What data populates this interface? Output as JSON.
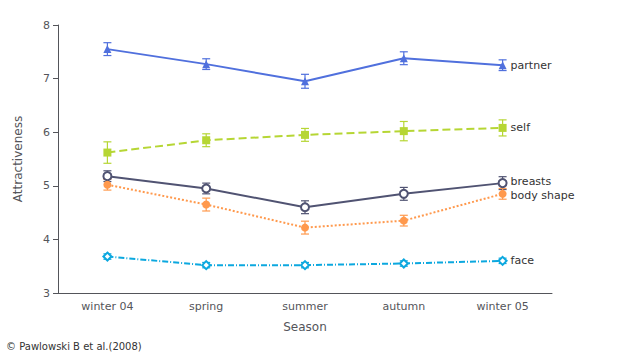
{
  "chart_data": {
    "type": "line",
    "xlabel": "Season",
    "ylabel": "Attractiveness",
    "categories": [
      "winter 04",
      "spring",
      "summer",
      "autumn",
      "winter 05"
    ],
    "series": [
      {
        "name": "partner",
        "values": [
          7.55,
          7.27,
          6.95,
          7.38,
          7.25
        ],
        "errors": [
          0.12,
          0.1,
          0.13,
          0.12,
          0.1
        ],
        "marker": "triangle",
        "line_style": "solid"
      },
      {
        "name": "self",
        "values": [
          5.62,
          5.85,
          5.95,
          6.02,
          6.08
        ],
        "errors": [
          0.2,
          0.12,
          0.12,
          0.18,
          0.15
        ],
        "marker": "square",
        "line_style": "dashed"
      },
      {
        "name": "breasts",
        "values": [
          5.18,
          4.95,
          4.6,
          4.85,
          5.05
        ],
        "errors": [
          0.1,
          0.1,
          0.12,
          0.12,
          0.12
        ],
        "marker": "open circle",
        "line_style": "solid"
      },
      {
        "name": "body shape",
        "values": [
          5.02,
          4.65,
          4.22,
          4.35,
          4.85
        ],
        "errors": [
          0.1,
          0.12,
          0.12,
          0.1,
          0.1
        ],
        "marker": "circle",
        "line_style": "dotted"
      },
      {
        "name": "face",
        "values": [
          3.68,
          3.52,
          3.52,
          3.55,
          3.6
        ],
        "errors": [
          0.05,
          0.05,
          0.05,
          0.05,
          0.05
        ],
        "marker": "open diamond",
        "line_style": "dashdot"
      }
    ],
    "ylim": [
      3.0,
      8.0
    ],
    "yticks": [
      3,
      4,
      5,
      6,
      7,
      8
    ],
    "grid": false,
    "annotations": [
      "© Pawlowski B et al.(2008)"
    ]
  }
}
